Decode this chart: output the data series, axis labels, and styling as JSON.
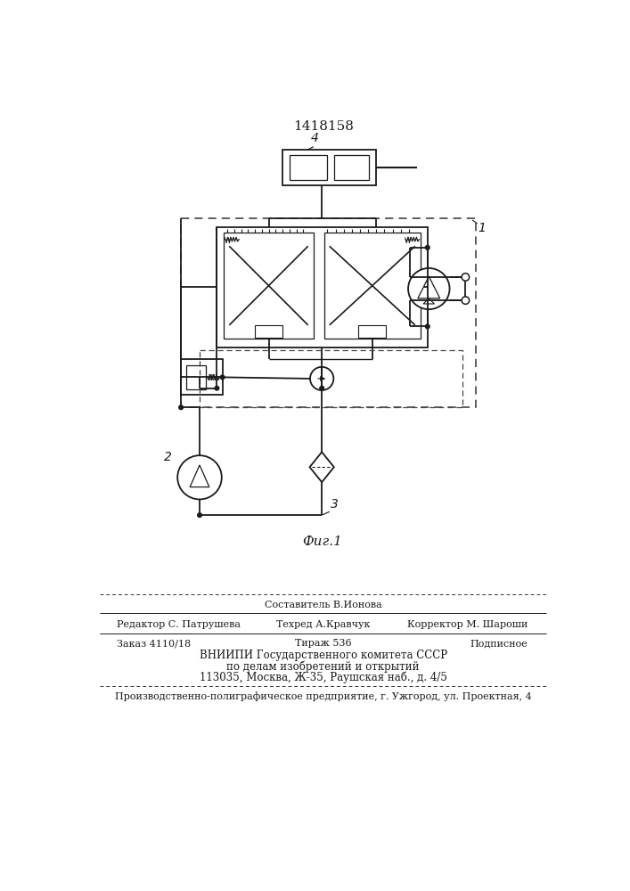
{
  "title": "1418158",
  "fig_caption": "Фиг.1",
  "label_1": "1",
  "label_2": "2",
  "label_3": "3",
  "label_4": "4",
  "footer_line1_center_top": "Составитель В.Ионова",
  "footer_line1_left": "Редактор С. Патрушева",
  "footer_line1_center": "Техред А.Кравчук",
  "footer_line1_right": "Корректор М. Шароши",
  "footer_line2_left": "Заказ 4110/18",
  "footer_line2_center": "Тираж 536",
  "footer_line2_right": "Подписное",
  "footer_line3": "ВНИИПИ Государственного комитета СССР",
  "footer_line4": "по делам изобретений и открытий",
  "footer_line5": "113035, Москва, Ж-35, Раушская наб., д. 4/5",
  "footer_line6": "Производственно-полиграфическое предприятие, г. Ужгород, ул. Проектная, 4",
  "lc": "#1a1a1a"
}
